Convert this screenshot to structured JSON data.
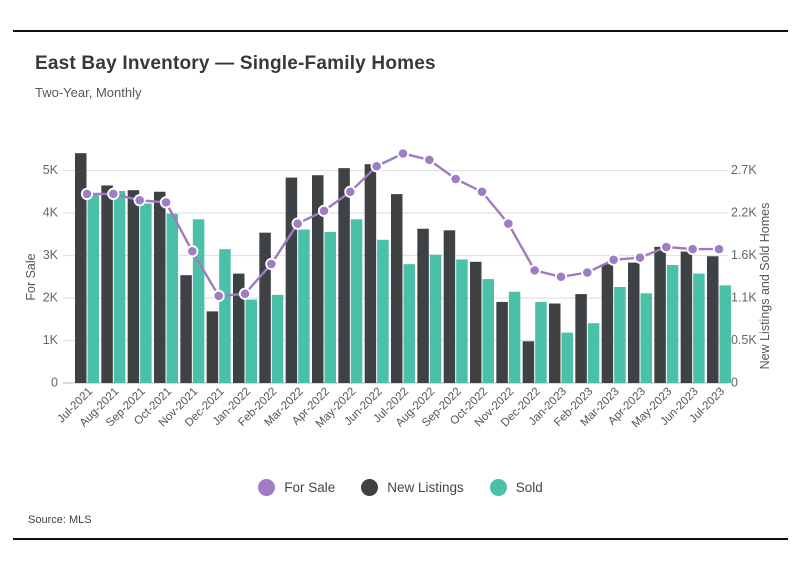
{
  "header": {
    "title": "East Bay Inventory — Single-Family Homes",
    "subtitle": "Two-Year, Monthly"
  },
  "source_note": "Source: MLS",
  "colors": {
    "for_sale_line": "#9c7cbf",
    "for_sale_marker": "#a07cc5",
    "new_listings": "#3e4245",
    "sold": "#4bc0a9",
    "grid": "#e2e2e2",
    "baseline": "#c4c4c4",
    "rule": "#111111",
    "tick_text": "#666666"
  },
  "legend": {
    "items": [
      {
        "label": "For Sale",
        "color_key": "for_sale_marker",
        "marker": "circle"
      },
      {
        "label": "New Listings",
        "color_key": "new_listings",
        "marker": "circle"
      },
      {
        "label": "Sold",
        "color_key": "sold",
        "marker": "circle"
      }
    ]
  },
  "chart_data": {
    "type": "combo (grouped bars + line)",
    "title": "East Bay Inventory — Single-Family Homes",
    "subtitle": "Two-Year, Monthly",
    "grid": true,
    "legend_position": "bottom",
    "categories": [
      "Jul-2021",
      "Aug-2021",
      "Sep-2021",
      "Oct-2021",
      "Nov-2021",
      "Dec-2021",
      "Jan-2022",
      "Feb-2022",
      "Mar-2022",
      "Apr-2022",
      "May-2022",
      "Jun-2022",
      "Jul-2022",
      "Aug-2022",
      "Sep-2022",
      "Oct-2022",
      "Nov-2022",
      "Dec-2022",
      "Jan-2023",
      "Feb-2023",
      "Mar-2023",
      "Apr-2023",
      "May-2023",
      "Jun-2023",
      "Jul-2023"
    ],
    "left_axis": {
      "label": "For Sale",
      "ticks": [
        "0",
        "1K",
        "2K",
        "3K",
        "4K",
        "5K"
      ],
      "tick_values": [
        0,
        1000,
        2000,
        3000,
        4000,
        5000
      ],
      "range": [
        0,
        5000
      ]
    },
    "right_axis": {
      "label": "New Listings and Sold Homes",
      "ticks": [
        "0",
        "0.5K",
        "1.1K",
        "1.6K",
        "2.2K",
        "2.7K"
      ],
      "tick_values": [
        0,
        540,
        1080,
        1620,
        2160,
        2700
      ],
      "range": [
        0,
        2700
      ]
    },
    "series": [
      {
        "name": "For Sale",
        "type": "line",
        "axis": "left",
        "values": [
          4450,
          4450,
          4300,
          4250,
          3100,
          2050,
          2100,
          2800,
          3750,
          4050,
          4500,
          5100,
          5400,
          5250,
          4800,
          4500,
          3750,
          2650,
          2500,
          2600,
          2900,
          2950,
          3200,
          3150,
          3150
        ]
      },
      {
        "name": "New Listings",
        "type": "bar",
        "axis": "right",
        "values": [
          2920,
          2510,
          2450,
          2430,
          1370,
          910,
          1390,
          1910,
          2610,
          2640,
          2730,
          2780,
          2400,
          1960,
          1940,
          1540,
          1030,
          530,
          1010,
          1130,
          1510,
          1530,
          1730,
          1670,
          1610
        ]
      },
      {
        "name": "Sold",
        "type": "bar",
        "axis": "right",
        "values": [
          2410,
          2440,
          2280,
          2150,
          2080,
          1700,
          1060,
          1120,
          1950,
          1920,
          2080,
          1820,
          1510,
          1630,
          1570,
          1320,
          1160,
          1030,
          640,
          760,
          1220,
          1140,
          1500,
          1390,
          1240
        ]
      }
    ]
  }
}
